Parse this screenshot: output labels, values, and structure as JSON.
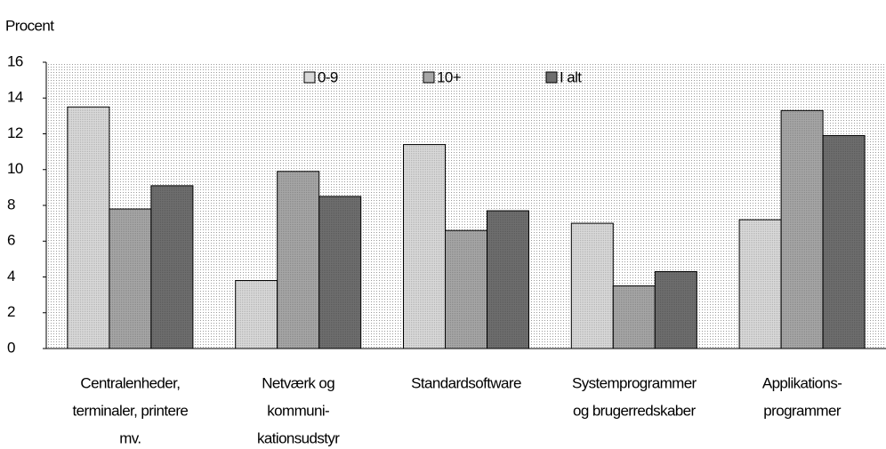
{
  "chart_data": {
    "type": "bar",
    "y_label": "Procent",
    "categories": [
      [
        "Centralenheder,",
        "terminaler, printere",
        "mv."
      ],
      [
        "Netværk og",
        "kommuni-",
        "kationsudstyr"
      ],
      [
        "Standardsoftware"
      ],
      [
        "Systemprogrammer",
        "og brugerredskaber"
      ],
      [
        "Applikations-",
        "programmer"
      ]
    ],
    "series": [
      {
        "name": "0-9",
        "color": "#d9d9d9",
        "values": [
          13.5,
          3.8,
          11.4,
          7.0,
          7.2
        ]
      },
      {
        "name": "10+",
        "color": "#a6a6a6",
        "values": [
          7.8,
          9.9,
          6.6,
          3.5,
          13.3
        ]
      },
      {
        "name": "I alt",
        "color": "#6e6e6e",
        "values": [
          9.1,
          8.5,
          7.7,
          4.3,
          11.9
        ]
      }
    ],
    "ylim": [
      0,
      16
    ],
    "yticks": [
      0,
      2,
      4,
      6,
      8,
      10,
      12,
      14,
      16
    ],
    "legend": "top"
  }
}
